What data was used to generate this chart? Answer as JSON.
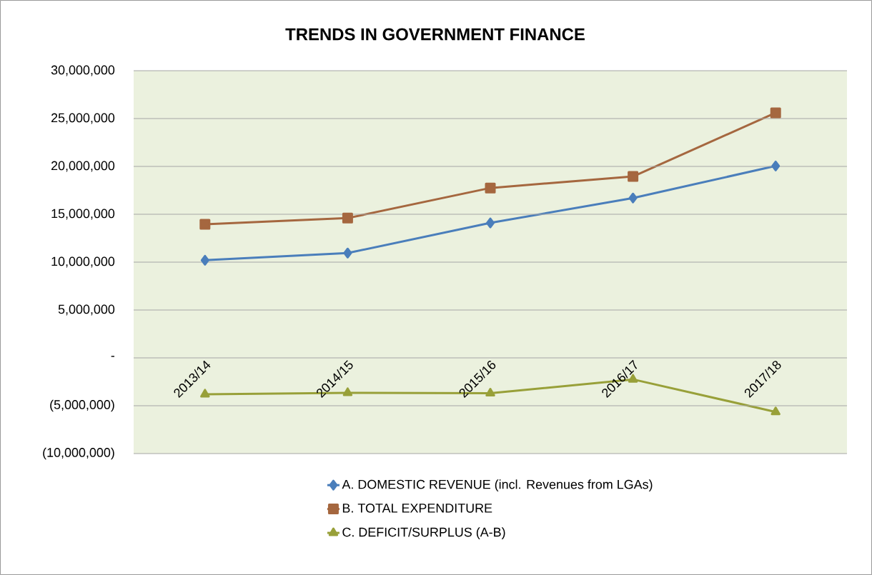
{
  "chart_data": {
    "type": "line",
    "title": "TRENDS IN GOVERNMENT FINANCE",
    "categories": [
      "2013/14",
      "2014/15",
      "2015/16",
      "2016/17",
      "2017/18"
    ],
    "series": [
      {
        "name": "A.  DOMESTIC REVENUE (incl. Revenues from LGAs)",
        "color": "#4a7ebb",
        "marker": "diamond",
        "values": [
          10200000,
          10950000,
          14100000,
          16700000,
          20050000
        ]
      },
      {
        "name": "B.  TOTAL EXPENDITURE",
        "color": "#a5673f",
        "marker": "square",
        "values": [
          13950000,
          14600000,
          17750000,
          18950000,
          25600000
        ]
      },
      {
        "name": "C.  DEFICIT/SURPLUS  (A-B)",
        "color": "#98a039",
        "marker": "triangle",
        "values": [
          -3800000,
          -3650000,
          -3700000,
          -2250000,
          -5650000
        ]
      }
    ],
    "ylim": [
      -10000000,
      30000000
    ],
    "yticks": [
      {
        "value": -10000000,
        "label": "(10,000,000)"
      },
      {
        "value": -5000000,
        "label": "(5,000,000)"
      },
      {
        "value": 0,
        "label": "-"
      },
      {
        "value": 5000000,
        "label": "5,000,000"
      },
      {
        "value": 10000000,
        "label": "10,000,000"
      },
      {
        "value": 15000000,
        "label": "15,000,000"
      },
      {
        "value": 20000000,
        "label": "20,000,000"
      },
      {
        "value": 25000000,
        "label": "25,000,000"
      },
      {
        "value": 30000000,
        "label": "30,000,000"
      }
    ],
    "grid": "y",
    "legend": "bottom",
    "line_style": "solid"
  }
}
